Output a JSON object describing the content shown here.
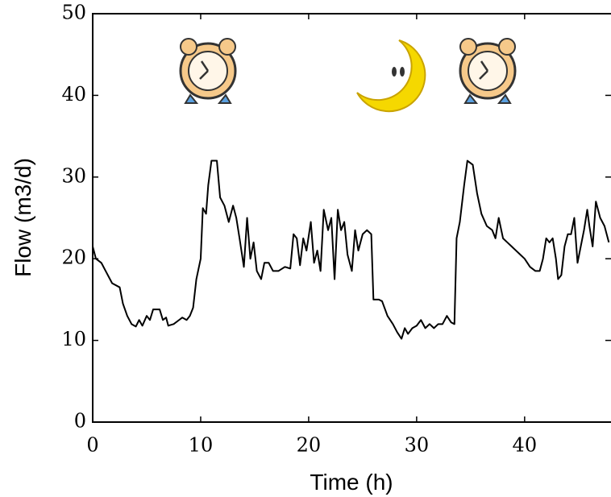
{
  "chart_data": {
    "type": "line",
    "x_label": "Time (h)",
    "y_label": "Flow (m3/d)",
    "xlim": [
      0,
      48
    ],
    "xticks": [
      0,
      10,
      20,
      30,
      40
    ],
    "ylim": [
      0,
      50
    ],
    "yticks": [
      0,
      10,
      20,
      30,
      40,
      50
    ],
    "color": "#000000",
    "x": [
      0,
      0.3,
      0.8,
      1.2,
      1.8,
      2.5,
      2.8,
      3.2,
      3.6,
      4,
      4.3,
      4.6,
      5,
      5.3,
      5.6,
      6.2,
      6.5,
      6.8,
      7,
      7.5,
      8,
      8.3,
      8.7,
      9,
      9.3,
      9.6,
      10,
      10.2,
      10.5,
      10.7,
      11,
      11.5,
      11.8,
      12.2,
      12.6,
      13,
      13.3,
      13.6,
      14,
      14.3,
      14.6,
      14.9,
      15.2,
      15.6,
      15.9,
      16.3,
      16.7,
      17.2,
      17.8,
      18.3,
      18.6,
      18.9,
      19.2,
      19.5,
      19.8,
      20.2,
      20.5,
      20.8,
      21.1,
      21.4,
      21.8,
      22.1,
      22.4,
      22.7,
      23,
      23.3,
      23.6,
      24,
      24.3,
      24.6,
      25,
      25.4,
      25.8,
      26,
      26.5,
      26.8,
      27.3,
      27.8,
      28.2,
      28.6,
      28.9,
      29.2,
      29.6,
      30,
      30.4,
      30.8,
      31.2,
      31.6,
      32,
      32.4,
      32.8,
      33.2,
      33.5,
      33.7,
      34,
      34.4,
      34.7,
      35.2,
      35.6,
      36,
      36.5,
      37,
      37.3,
      37.6,
      38,
      38.4,
      38.8,
      39.2,
      39.6,
      40,
      40.5,
      41,
      41.4,
      41.7,
      42,
      42.3,
      42.6,
      42.9,
      43.1,
      43.4,
      43.7,
      44,
      44.3,
      44.6,
      44.9,
      45.2,
      45.5,
      45.8,
      46,
      46.3,
      46.6,
      47,
      47.4,
      47.8
    ],
    "values": [
      21.5,
      20,
      19.5,
      18.5,
      17,
      16.5,
      14.5,
      13,
      12,
      11.7,
      12.5,
      11.8,
      13,
      12.5,
      13.8,
      13.8,
      12.5,
      12.8,
      11.8,
      12,
      12.5,
      12.8,
      12.5,
      13,
      14,
      17.5,
      20,
      26.2,
      25.5,
      29,
      32,
      32,
      27.5,
      26.5,
      24.5,
      26.5,
      25,
      22.5,
      19,
      25,
      20,
      22,
      18.5,
      17.5,
      19.5,
      19.5,
      18.5,
      18.5,
      19,
      18.8,
      23,
      22.5,
      19.2,
      22.5,
      21,
      24.5,
      19.5,
      21,
      18.5,
      26,
      23.5,
      25,
      17.5,
      26,
      23.5,
      24.5,
      20.5,
      18.5,
      23.5,
      21,
      23,
      23.5,
      23,
      15,
      15,
      14.8,
      13,
      12,
      11,
      10.2,
      11.5,
      10.8,
      11.5,
      11.8,
      12.5,
      11.5,
      12,
      11.5,
      12,
      12,
      13,
      12.2,
      12,
      22.5,
      24.5,
      29,
      32,
      31.5,
      28,
      25.5,
      24,
      23.5,
      22.5,
      25,
      22.5,
      22,
      21.5,
      21,
      20.5,
      20,
      19,
      18.5,
      18.5,
      20,
      22.5,
      22,
      22.5,
      20,
      17.5,
      18,
      21.5,
      23,
      23,
      25,
      19.5,
      21.5,
      23.5,
      26,
      24,
      21.5,
      27,
      25,
      24,
      22
    ]
  }
}
